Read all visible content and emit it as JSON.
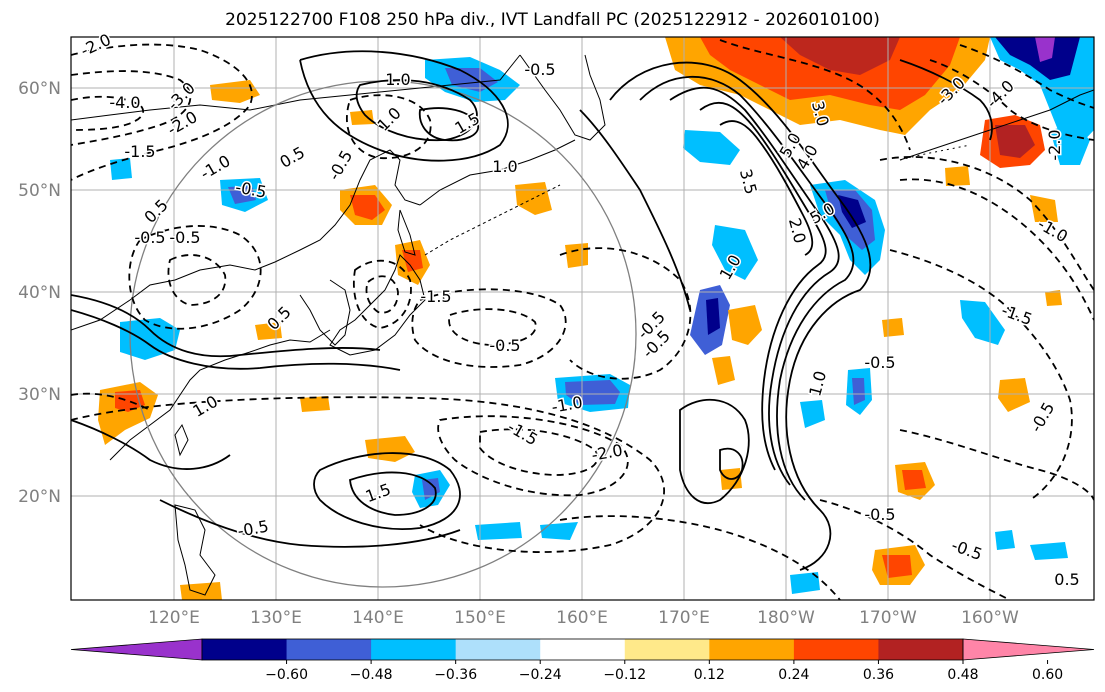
{
  "title": "2025122700 F108 250 hPa div., IVT Landfall PC (2025122912 - 2026010100)",
  "lat_labels": [
    "60°N",
    "50°N",
    "40°N",
    "30°N",
    "20°N"
  ],
  "lon_labels": [
    "120°E",
    "130°E",
    "140°E",
    "150°E",
    "160°E",
    "170°E",
    "180°W",
    "170°W",
    "160°W"
  ],
  "colorbar": {
    "ticks": [
      "−0.60",
      "−0.48",
      "−0.36",
      "−0.24",
      "−0.12",
      "0.12",
      "0.24",
      "0.36",
      "0.48",
      "0.60"
    ],
    "colors": [
      "#9932cc",
      "#00008b",
      "#3f5fd6",
      "#00bfff",
      "#aee0fb",
      "#ffffff",
      "#ffe98a",
      "#ffa500",
      "#ff4500",
      "#b22222",
      "#ff85a8"
    ]
  },
  "contour_labels": [
    "-2.0",
    "-4.0",
    "-3.0",
    "-2.0",
    "-1.5",
    "-1.0",
    "-0.5",
    "-0.5",
    "-0.5",
    "1.0",
    "1.0",
    "1.5",
    "0.5",
    "-0.5",
    "0.5",
    "-1.0",
    "-1.5",
    "1.0",
    "-0.5",
    "-0.5",
    "-0.5",
    "-1.0",
    "-1.5",
    "-2.0",
    "0.5",
    "1.0",
    "1.5",
    "-0.5",
    "-0.5",
    "3.0",
    "5.0",
    "4.0",
    "5.0",
    "3.5",
    "2.0",
    "1.0",
    "1.0",
    "-3.0",
    "-4.0",
    "-2.0",
    "-1.0",
    "-1.5",
    "-0.5",
    "-0.5",
    "-0.5",
    "-0.5",
    "0.5"
  ],
  "map_style": {
    "positive_contour": "solid black",
    "negative_contour": "dashed black",
    "range_circle_color": "#808080",
    "grid_color": "#b0b0b0"
  }
}
